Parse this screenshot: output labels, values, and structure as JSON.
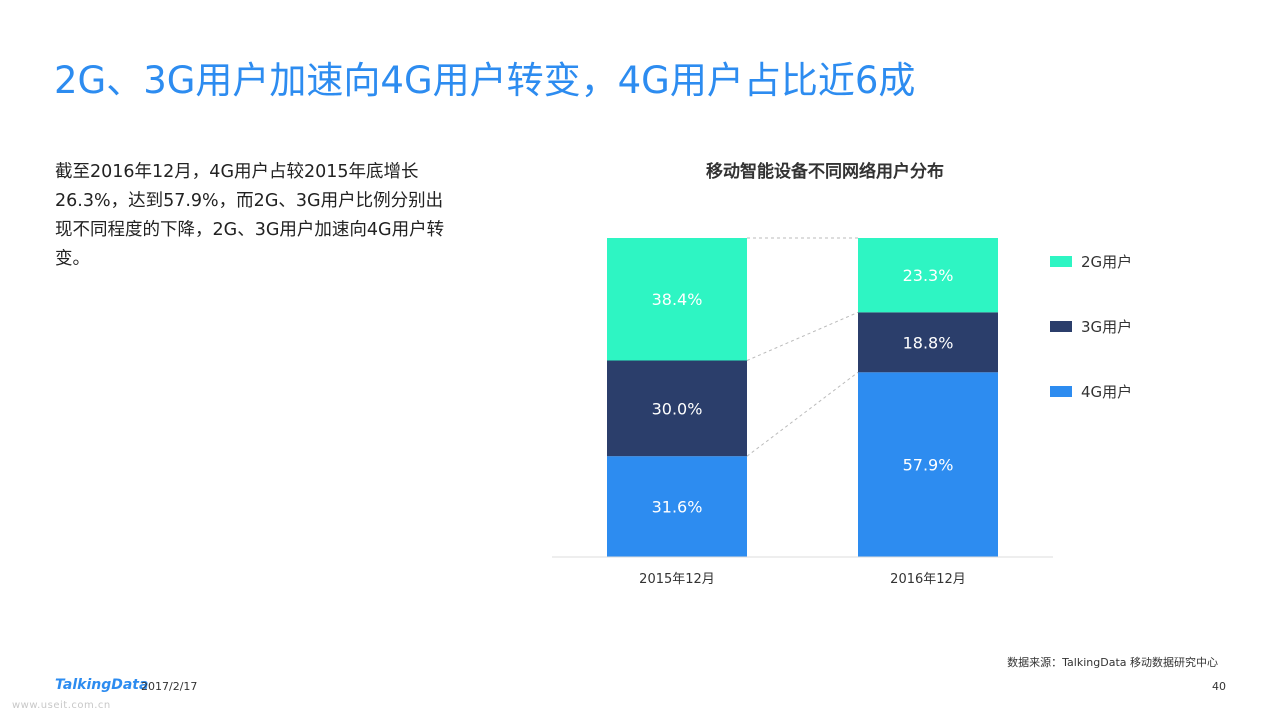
{
  "slide": {
    "title": "2G、3G用户加速向4G用户转变，4G用户占比近6成",
    "summary": "截至2016年12月，4G用户占较2015年底增长26.3%，达到57.9%，而2G、3G用户比例分别出现不同程度的下降，2G、3G用户加速向4G用户转变。"
  },
  "footer": {
    "source": "数据来源：TalkingData 移动数据研究中心",
    "logo": "TalkingData",
    "date": "2017/2/17",
    "page": "40",
    "watermark": "www.useit.com.cn"
  },
  "colors": {
    "title": "#2d8cf0",
    "2g": "#2ef5c3",
    "3g": "#2b3e6b",
    "4g": "#2d8cf0"
  },
  "chart_data": {
    "type": "bar",
    "stacked": true,
    "percent": true,
    "title": "移动智能设备不同网络用户分布",
    "categories": [
      "2015年12月",
      "2016年12月"
    ],
    "series": [
      {
        "name": "4G用户",
        "values": [
          31.6,
          57.9
        ],
        "labels": [
          "31.6%",
          "57.9%"
        ],
        "color": "#2d8cf0"
      },
      {
        "name": "3G用户",
        "values": [
          30.0,
          18.8
        ],
        "labels": [
          "30.0%",
          "18.8%"
        ],
        "color": "#2b3e6b"
      },
      {
        "name": "2G用户",
        "values": [
          38.4,
          23.3
        ],
        "labels": [
          "38.4%",
          "23.3%"
        ],
        "color": "#2ef5c3"
      }
    ],
    "legend": [
      "2G用户",
      "3G用户",
      "4G用户"
    ],
    "legend_position": "right",
    "ylim": [
      0,
      100
    ],
    "grid": false,
    "connectors": true
  }
}
